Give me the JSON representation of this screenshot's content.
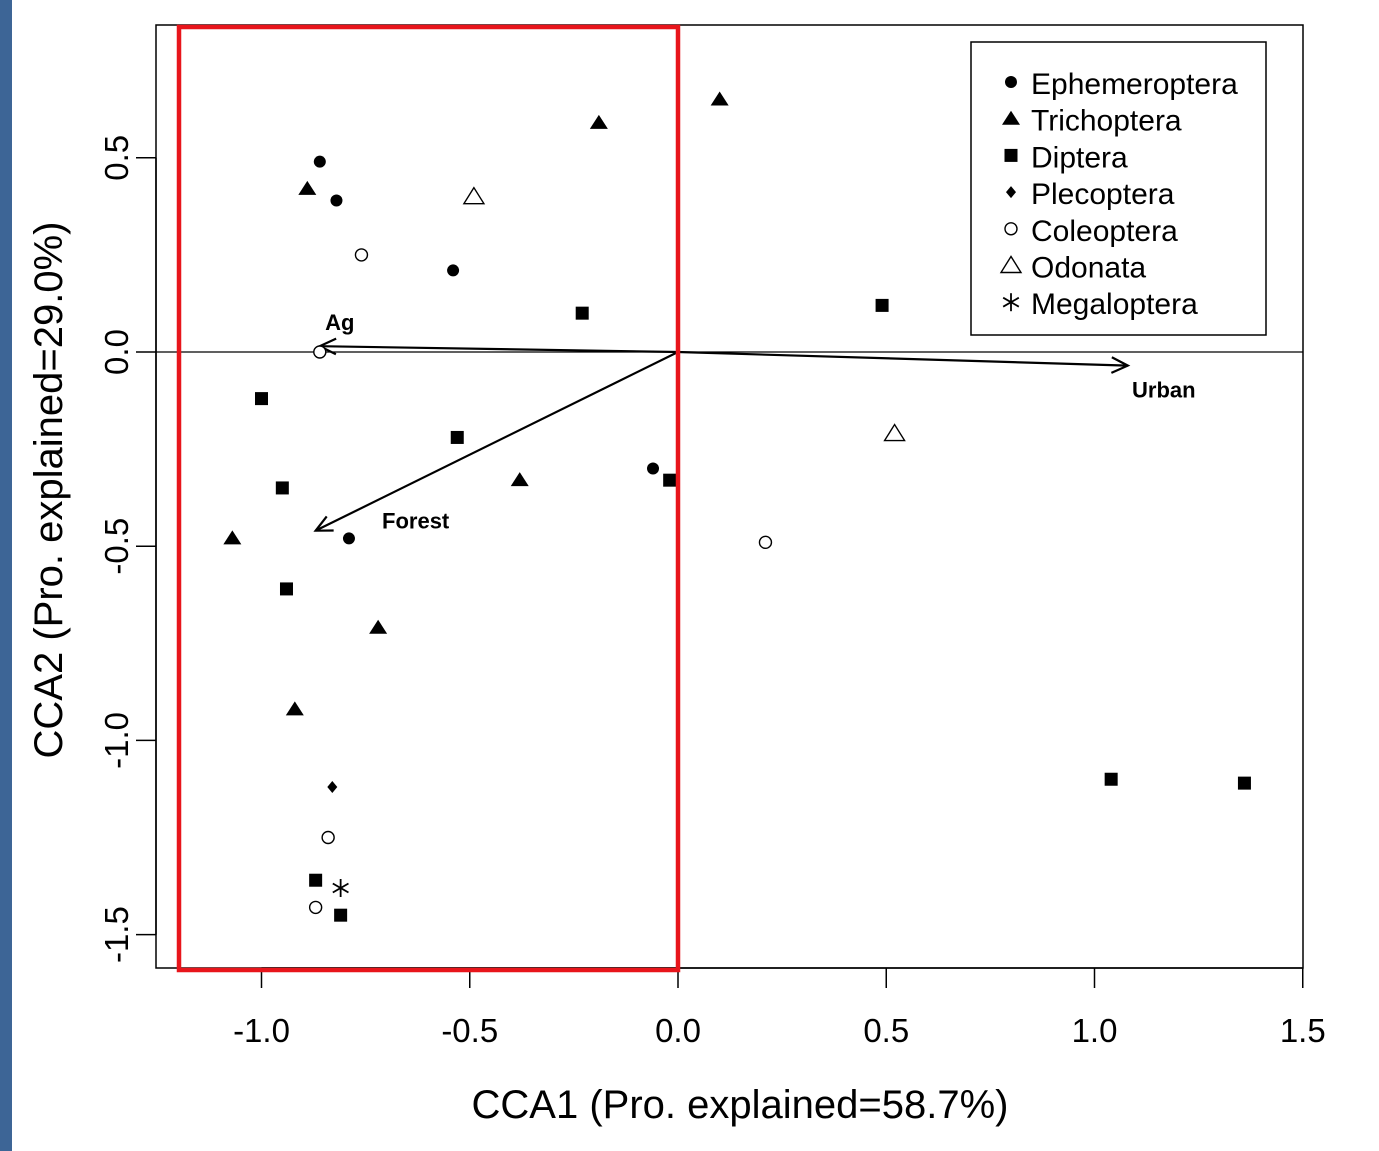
{
  "chart_data": {
    "type": "scatter",
    "title": "",
    "xlabel": "CCA1 (Pro. explained=58.7%)",
    "ylabel": "CCA2 (Pro. explained=29.0%)",
    "xlim": [
      -1.25,
      1.5
    ],
    "ylim": [
      -1.58,
      0.85
    ],
    "x_ticks": [
      -1.0,
      -0.5,
      0.0,
      0.5,
      1.0,
      1.5
    ],
    "x_tick_labels": [
      "-1.0",
      "-0.5",
      "0.0",
      "0.5",
      "1.0",
      "1.5"
    ],
    "y_ticks": [
      -1.5,
      -1.0,
      -0.5,
      0.0,
      0.5
    ],
    "y_tick_labels": [
      "-1.5",
      "-1.0",
      "-0.5",
      "0.0",
      "0.5"
    ],
    "grid": false,
    "legend_position": "top-right",
    "zero_line": "horizontal at y=0",
    "highlight_box": {
      "x_range": [
        -1.2,
        0.0
      ],
      "y_range": [
        -1.58,
        0.85
      ],
      "color": "#e8151b"
    },
    "series": [
      {
        "name": "Ephemeroptera",
        "marker": "filled-circle",
        "points": [
          [
            -0.86,
            0.49
          ],
          [
            -0.82,
            0.39
          ],
          [
            -0.54,
            0.21
          ],
          [
            -0.06,
            -0.3
          ],
          [
            -0.79,
            -0.48
          ]
        ]
      },
      {
        "name": "Trichoptera",
        "marker": "filled-triangle",
        "points": [
          [
            -0.89,
            0.42
          ],
          [
            -0.19,
            0.59
          ],
          [
            0.1,
            0.65
          ],
          [
            -0.38,
            -0.33
          ],
          [
            -1.07,
            -0.48
          ],
          [
            -0.72,
            -0.71
          ],
          [
            -0.92,
            -0.92
          ]
        ]
      },
      {
        "name": "Diptera",
        "marker": "filled-square",
        "points": [
          [
            -0.23,
            0.1
          ],
          [
            0.49,
            0.12
          ],
          [
            -1.0,
            -0.12
          ],
          [
            -0.53,
            -0.22
          ],
          [
            -0.02,
            -0.33
          ],
          [
            -0.95,
            -0.35
          ],
          [
            -0.94,
            -0.61
          ],
          [
            1.04,
            -1.1
          ],
          [
            1.36,
            -1.11
          ],
          [
            -0.87,
            -1.36
          ],
          [
            -0.81,
            -1.45
          ]
        ]
      },
      {
        "name": "Plecoptera",
        "marker": "filled-diamond",
        "points": [
          [
            -0.83,
            -1.12
          ]
        ]
      },
      {
        "name": "Coleoptera",
        "marker": "open-circle",
        "points": [
          [
            -0.76,
            0.25
          ],
          [
            -0.86,
            0.0
          ],
          [
            0.21,
            -0.49
          ],
          [
            -0.84,
            -1.25
          ],
          [
            -0.87,
            -1.43
          ]
        ]
      },
      {
        "name": "Odonata",
        "marker": "open-triangle",
        "points": [
          [
            -0.49,
            0.4
          ],
          [
            0.52,
            -0.21
          ]
        ]
      },
      {
        "name": "Megaloptera",
        "marker": "asterisk",
        "points": [
          [
            -0.81,
            -1.38
          ]
        ]
      }
    ],
    "vectors": [
      {
        "label": "Ag",
        "end": [
          -0.86,
          0.015
        ]
      },
      {
        "label": "Urban",
        "end": [
          1.08,
          -0.035
        ]
      },
      {
        "label": "Forest",
        "end": [
          -0.87,
          -0.46
        ]
      }
    ]
  }
}
